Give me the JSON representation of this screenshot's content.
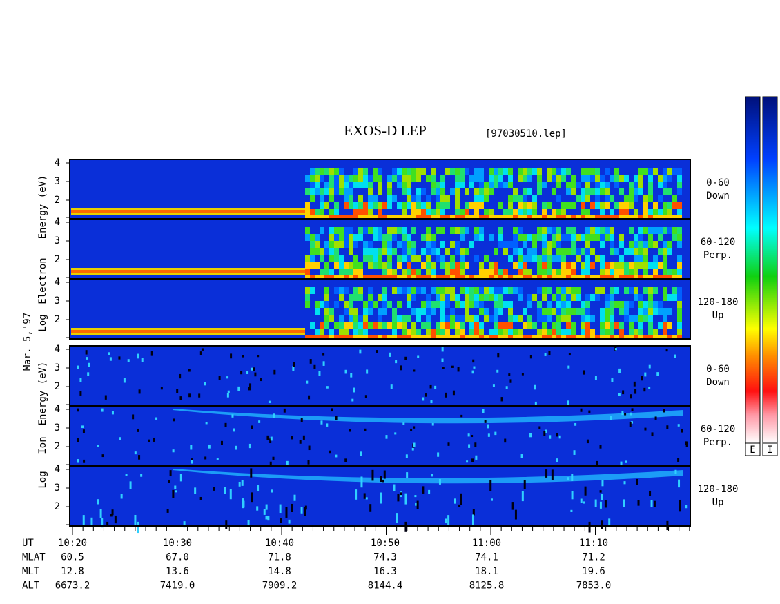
{
  "title": "EXOS-D LEP",
  "file": "[97030510.lep]",
  "date": "Mar. 5,'97",
  "electron_axis_words": [
    "Log",
    "Electron",
    "Energy (eV)"
  ],
  "ion_axis_words": [
    "Log",
    "Ion",
    "Energy (eV)"
  ],
  "panels": [
    {
      "pitch": "0-60",
      "direction": "Down",
      "yticks": [
        4,
        3,
        2
      ]
    },
    {
      "pitch": "60-120",
      "direction": "Perp.",
      "yticks": [
        4,
        3,
        2
      ]
    },
    {
      "pitch": "120-180",
      "direction": "Up",
      "yticks": [
        4,
        3,
        2
      ]
    },
    {
      "pitch": "0-60",
      "direction": "Down",
      "yticks": [
        4,
        3,
        2
      ]
    },
    {
      "pitch": "60-120",
      "direction": "Perp.",
      "yticks": [
        4,
        3,
        2
      ]
    },
    {
      "pitch": "120-180",
      "direction": "Up",
      "yticks": [
        4,
        3,
        2
      ]
    }
  ],
  "ephemeris": [
    {
      "name": "UT",
      "values": [
        "10:20",
        "10:30",
        "10:40",
        "10:50",
        "11:00",
        "11:10"
      ]
    },
    {
      "name": "MLAT",
      "values": [
        "60.5",
        "67.0",
        "71.8",
        "74.3",
        "74.1",
        "71.2"
      ]
    },
    {
      "name": "MLT",
      "values": [
        "12.8",
        "13.6",
        "14.8",
        "16.3",
        "18.1",
        "19.6"
      ]
    },
    {
      "name": "ALT",
      "values": [
        "6673.2",
        "7419.0",
        "7909.2",
        "8144.4",
        "8125.8",
        "7853.0"
      ]
    }
  ],
  "colorbars": [
    "E",
    "I"
  ]
}
